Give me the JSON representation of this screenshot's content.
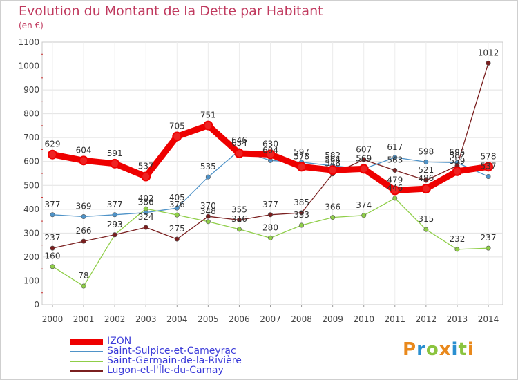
{
  "title": "Evolution du Montant de la Dette par Habitant",
  "unit": "(en €)",
  "logo": "Proxiti",
  "logo_colors": [
    "#e9891c",
    "#2a8fd0",
    "#8bc43f",
    "#e9891c",
    "#2a8fd0",
    "#8bc43f",
    "#e9891c"
  ],
  "chart_data": {
    "type": "line",
    "x": [
      2000,
      2001,
      2002,
      2003,
      2004,
      2005,
      2006,
      2007,
      2008,
      2009,
      2010,
      2011,
      2012,
      2013,
      2014
    ],
    "xticks": [
      "2000",
      "2001",
      "2002",
      "2003",
      "2004",
      "2005",
      "2006",
      "2007",
      "2008",
      "2009",
      "2010",
      "2011",
      "2012",
      "2013",
      "2014"
    ],
    "yticks": [
      "0",
      "100",
      "200",
      "300",
      "400",
      "500",
      "600",
      "700",
      "800",
      "900",
      "1000",
      "1100"
    ],
    "ylim": [
      0,
      1100
    ],
    "grid": true,
    "legend_position": "bottom",
    "series": [
      {
        "name": "IZON",
        "color": "#ee0000",
        "emphasis": true,
        "values": [
          629,
          604,
          591,
          537,
          705,
          751,
          634,
          630,
          578,
          564,
          569,
          479,
          486,
          559,
          578
        ],
        "labels": [
          "629",
          "604",
          "591",
          "537",
          "705",
          "751",
          "634",
          "630",
          "578",
          "564",
          "569",
          "479",
          "486",
          "559",
          "578"
        ]
      },
      {
        "name": "Saint-Sulpice-et-Cameyrac",
        "color": "#4f93c8",
        "values": [
          377,
          369,
          377,
          386,
          405,
          535,
          646,
          604,
          597,
          582,
          569,
          617,
          598,
          595,
          537
        ],
        "labels": [
          "377",
          "369",
          "377",
          "386",
          "405",
          "535",
          "646",
          "604",
          "597",
          "582",
          "569",
          "617",
          "598",
          "595",
          "537"
        ]
      },
      {
        "name": "Saint-Germain-de-la-Rivière",
        "color": "#8fce48",
        "values": [
          160,
          78,
          293,
          402,
          376,
          348,
          316,
          280,
          333,
          366,
          374,
          446,
          315,
          232,
          237
        ],
        "labels": [
          "160",
          "78",
          "293",
          "402",
          "376",
          "348",
          "316",
          "280",
          "333",
          "366",
          "374",
          "446",
          "315",
          "232",
          "237"
        ]
      },
      {
        "name": "Lugon-et-l'Île-du-Carnay",
        "color": "#7a1f1f",
        "values": [
          237,
          266,
          293,
          324,
          275,
          370,
          355,
          377,
          385,
          548,
          607,
          563,
          521,
          582,
          1012
        ],
        "labels": [
          "237",
          "266",
          "293",
          "324",
          "275",
          "370",
          "355",
          "377",
          "385",
          "548",
          "607",
          "563",
          "521",
          "582",
          "1012"
        ]
      }
    ]
  }
}
